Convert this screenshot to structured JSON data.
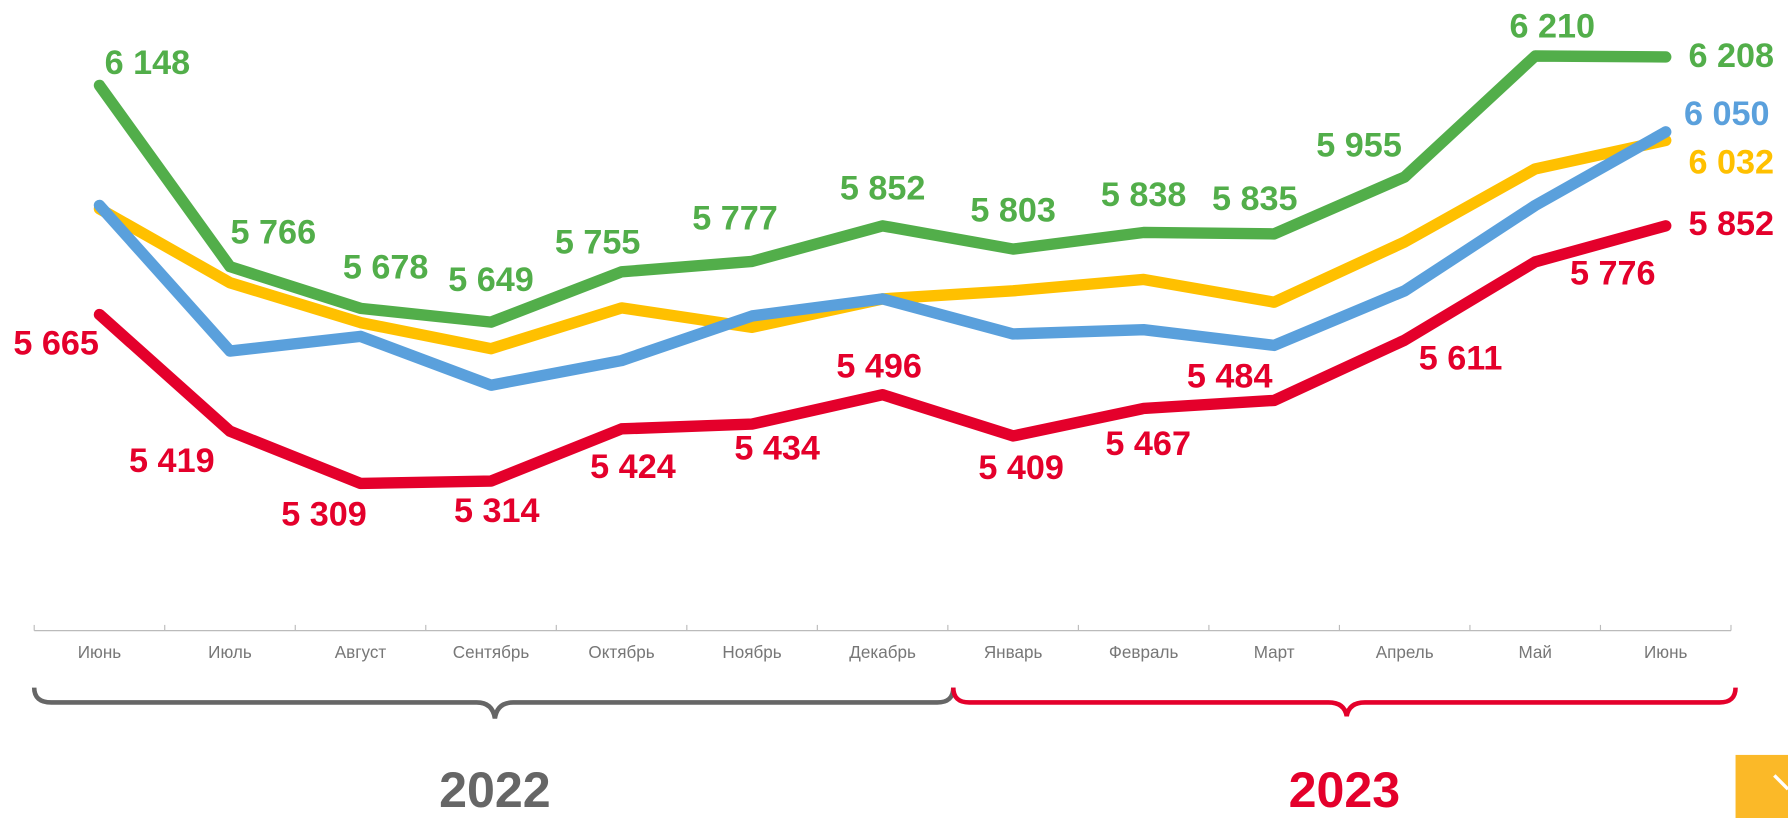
{
  "chart_data": {
    "type": "line",
    "categories": [
      "Июнь",
      "Июль",
      "Август",
      "Сентябрь",
      "Октябрь",
      "Ноябрь",
      "Декабрь",
      "Январь",
      "Февраль",
      "Март",
      "Апрель",
      "Май",
      "Июнь"
    ],
    "years": [
      "2022",
      "2023"
    ],
    "ylim": [
      5078,
      6328
    ],
    "series": [
      {
        "color": "#ffc000",
        "values": [
          5888,
          5732,
          5648,
          5593,
          5679,
          5638,
          5698,
          5715,
          5739,
          5691,
          5818,
          5972,
          6032
        ],
        "value_labels": [
          null,
          null,
          null,
          null,
          null,
          null,
          null,
          null,
          null,
          null,
          null,
          null,
          "6 032"
        ]
      },
      {
        "color": "#5aa0dc",
        "values": [
          5895,
          5588,
          5619,
          5516,
          5568,
          5662,
          5698,
          5624,
          5633,
          5600,
          5715,
          5895,
          6050
        ],
        "value_labels": [
          null,
          null,
          null,
          null,
          null,
          null,
          null,
          null,
          null,
          null,
          null,
          null,
          "6 050"
        ]
      },
      {
        "color": "#e4002b",
        "values": [
          5665,
          5419,
          5309,
          5314,
          5424,
          5434,
          5496,
          5409,
          5467,
          5484,
          5611,
          5776,
          5852
        ],
        "value_labels": [
          "5 665",
          "5 419",
          "5 309",
          "5 314",
          "5 424",
          "5 434",
          "5 496",
          "5 409",
          "5 467",
          "5 484",
          "5 611",
          "5 776",
          "5 852"
        ]
      },
      {
        "color": "#52ae4a",
        "values": [
          6148,
          5766,
          5678,
          5649,
          5755,
          5777,
          5852,
          5803,
          5838,
          5835,
          5955,
          6210,
          6208
        ],
        "value_labels": [
          "6 148",
          "5 766",
          "5 678",
          "5 649",
          "5 755",
          "5 777",
          "5 852",
          "5 803",
          "5 838",
          "5 835",
          "5 955",
          "6 210",
          "6 208"
        ]
      }
    ]
  }
}
